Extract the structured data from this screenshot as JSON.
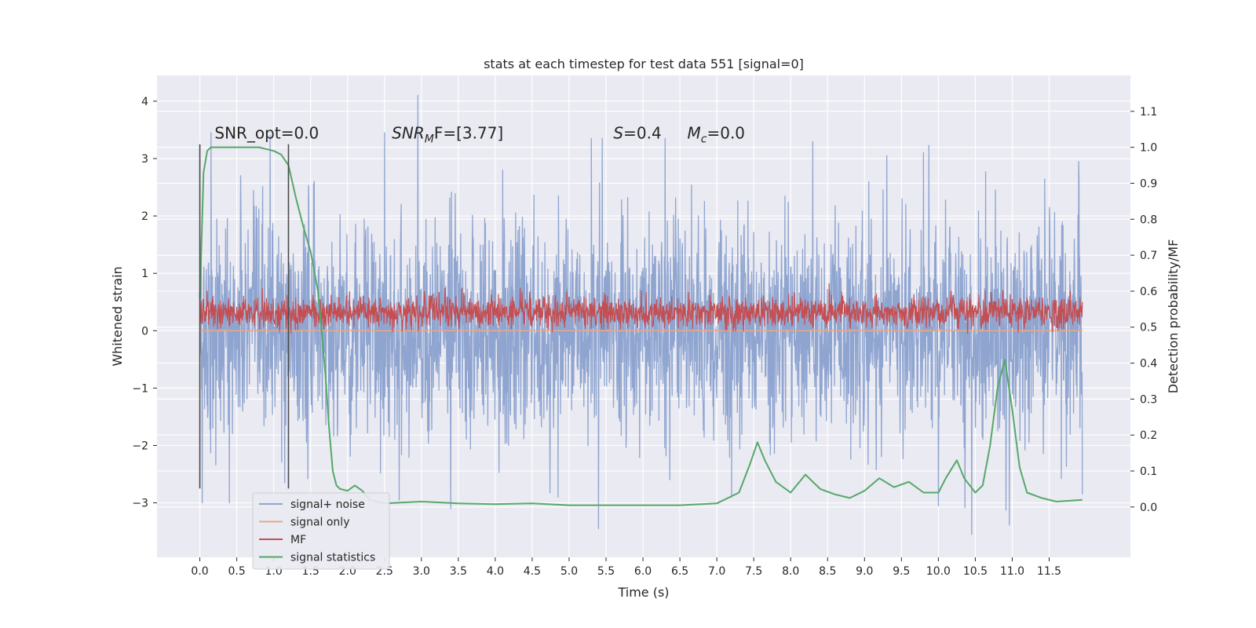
{
  "chart_data": {
    "type": "line",
    "title": "stats at each timestep for test data 551 [signal=0]",
    "xlabel": "Time (s)",
    "ylabel": "Whitened strain",
    "y2label": "Detection probability/MF",
    "xlim": [
      -0.58,
      12.6
    ],
    "ylim": [
      -3.95,
      4.45
    ],
    "y2lim": [
      -0.14,
      1.2
    ],
    "x_ticks": [
      0.0,
      0.5,
      1.0,
      1.5,
      2.0,
      2.5,
      3.0,
      3.5,
      4.0,
      4.5,
      5.0,
      5.5,
      6.0,
      6.5,
      7.0,
      7.5,
      8.0,
      8.5,
      9.0,
      9.5,
      10.0,
      10.5,
      11.0,
      11.5
    ],
    "x_tick_labels": [
      "0.0",
      "0.5",
      "1.0",
      "1.5",
      "2.0",
      "2.5",
      "3.0",
      "3.5",
      "4.0",
      "4.5",
      "5.0",
      "5.5",
      "6.0",
      "6.5",
      "7.0",
      "7.5",
      "8.0",
      "8.5",
      "9.0",
      "9.5",
      "10.0",
      "10.5",
      "11.0",
      "11.5"
    ],
    "y_ticks": [
      -3,
      -2,
      -1,
      0,
      1,
      2,
      3,
      4
    ],
    "y_tick_labels": [
      "−3",
      "−2",
      "−1",
      "0",
      "1",
      "2",
      "3",
      "4"
    ],
    "y2_ticks": [
      0.0,
      0.1,
      0.2,
      0.3,
      0.4,
      0.5,
      0.6,
      0.7,
      0.8,
      0.9,
      1.0,
      1.1
    ],
    "y2_tick_labels": [
      "0.0",
      "0.1",
      "0.2",
      "0.3",
      "0.4",
      "0.5",
      "0.6",
      "0.7",
      "0.8",
      "0.9",
      "1.0",
      "1.1"
    ],
    "grid": true,
    "background": "#eaeaf2",
    "legend_position": "lower-left",
    "annotations": [
      {
        "label": "SNR_opt=0.0",
        "x": 0.2,
        "y": 3.35,
        "italic_prefix": "",
        "sub": "",
        "suffix": ""
      },
      {
        "label": "",
        "x": 2.6,
        "y": 3.35,
        "italic_prefix": "SNR",
        "sub": "M",
        "suffix": "F=[3.77]"
      },
      {
        "label": "",
        "x": 5.6,
        "y": 3.35,
        "italic_prefix": "S",
        "sub": "",
        "suffix": "=0.4"
      },
      {
        "label": "",
        "x": 6.6,
        "y": 3.35,
        "italic_prefix": "M",
        "sub": "c",
        "suffix": "=0.0"
      }
    ],
    "vertical_markers": [
      {
        "x": 0.0,
        "y_range": [
          -2.75,
          3.25
        ]
      },
      {
        "x": 1.2,
        "y_range": [
          -2.75,
          3.25
        ]
      }
    ],
    "series": [
      {
        "name": "signal+ noise",
        "color": "#8fa5d0",
        "axis": "left",
        "kind": "noise",
        "x_range": [
          0.0,
          11.95
        ],
        "envelope": {
          "dense_band": [
            -1.5,
            1.5
          ],
          "typical_peak": 2.6,
          "max": 4.1,
          "min": -3.45
        },
        "peaks": [
          {
            "x": 0.03,
            "y": 2.3
          },
          {
            "x": 0.15,
            "y": 3.45
          },
          {
            "x": 0.55,
            "y": 2.7
          },
          {
            "x": 0.95,
            "y": 3.4
          },
          {
            "x": 1.55,
            "y": 2.6
          },
          {
            "x": 2.5,
            "y": 3.45
          },
          {
            "x": 2.95,
            "y": 4.1
          },
          {
            "x": 4.1,
            "y": 2.8
          },
          {
            "x": 5.3,
            "y": 3.35
          },
          {
            "x": 5.45,
            "y": 3.35
          },
          {
            "x": 6.3,
            "y": 3.35
          },
          {
            "x": 8.3,
            "y": 3.3
          },
          {
            "x": 9.3,
            "y": 3.05
          },
          {
            "x": 9.8,
            "y": 3.1
          },
          {
            "x": 11.9,
            "y": 2.95
          }
        ],
        "troughs": [
          {
            "x": 0.03,
            "y": -3.0
          },
          {
            "x": 0.4,
            "y": -3.0
          },
          {
            "x": 1.15,
            "y": -2.65
          },
          {
            "x": 2.7,
            "y": -2.95
          },
          {
            "x": 3.4,
            "y": -3.1
          },
          {
            "x": 4.85,
            "y": -2.9
          },
          {
            "x": 5.4,
            "y": -3.45
          },
          {
            "x": 7.2,
            "y": -2.9
          },
          {
            "x": 10.0,
            "y": -3.05
          },
          {
            "x": 10.45,
            "y": -3.55
          },
          {
            "x": 11.95,
            "y": -2.85
          }
        ]
      },
      {
        "name": "signal only",
        "color": "#e8a888",
        "axis": "left",
        "kind": "flat",
        "x_range": [
          0.0,
          11.95
        ],
        "values": [
          0.0
        ]
      },
      {
        "name": "MF",
        "color": "#c44e52",
        "axis": "left",
        "kind": "noise",
        "x_range": [
          0.0,
          11.95
        ],
        "envelope": {
          "dense_band": [
            0.1,
            0.55
          ],
          "typical_peak": 0.75,
          "max": 1.0,
          "min": -0.05
        }
      },
      {
        "name": "signal statistics",
        "color": "#55a868",
        "axis": "right",
        "kind": "line",
        "x": [
          0.0,
          0.05,
          0.1,
          0.15,
          0.25,
          0.5,
          0.8,
          1.0,
          1.1,
          1.2,
          1.3,
          1.4,
          1.5,
          1.6,
          1.7,
          1.75,
          1.8,
          1.85,
          1.9,
          2.0,
          2.1,
          2.2,
          2.3,
          2.5,
          3.0,
          3.5,
          4.0,
          4.5,
          5.0,
          5.5,
          6.0,
          6.5,
          7.0,
          7.3,
          7.45,
          7.55,
          7.65,
          7.8,
          8.0,
          8.2,
          8.4,
          8.6,
          8.8,
          9.0,
          9.2,
          9.4,
          9.6,
          9.8,
          10.0,
          10.1,
          10.25,
          10.35,
          10.5,
          10.6,
          10.7,
          10.8,
          10.9,
          11.0,
          11.1,
          11.2,
          11.4,
          11.6,
          11.95
        ],
        "values": [
          0.58,
          0.93,
          0.99,
          1.0,
          1.0,
          1.0,
          1.0,
          0.99,
          0.98,
          0.95,
          0.86,
          0.78,
          0.71,
          0.6,
          0.37,
          0.22,
          0.1,
          0.06,
          0.05,
          0.045,
          0.06,
          0.045,
          0.02,
          0.01,
          0.015,
          0.01,
          0.008,
          0.01,
          0.005,
          0.005,
          0.005,
          0.005,
          0.01,
          0.04,
          0.12,
          0.18,
          0.13,
          0.07,
          0.04,
          0.09,
          0.05,
          0.035,
          0.025,
          0.045,
          0.08,
          0.055,
          0.07,
          0.04,
          0.04,
          0.08,
          0.13,
          0.08,
          0.04,
          0.06,
          0.17,
          0.33,
          0.41,
          0.27,
          0.11,
          0.04,
          0.025,
          0.015,
          0.02
        ]
      }
    ]
  }
}
